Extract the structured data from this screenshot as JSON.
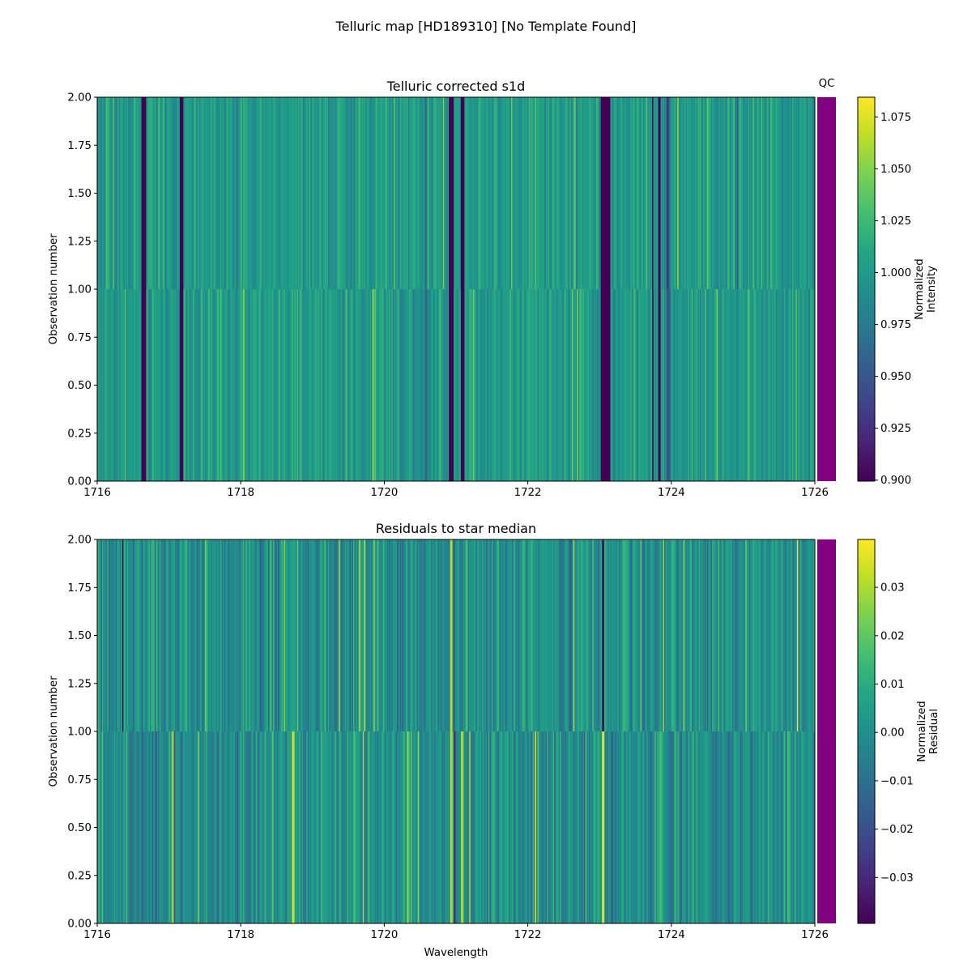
{
  "figure": {
    "suptitle": "Telluric map [HD189310] [No Template Found]"
  },
  "chart_data": [
    {
      "type": "heatmap",
      "title": "Telluric corrected s1d",
      "xlabel": "",
      "ylabel": "Observation number",
      "xlim": [
        1716,
        1726
      ],
      "ylim": [
        0.0,
        2.0
      ],
      "xticks": [
        "1716",
        "1718",
        "1720",
        "1722",
        "1724",
        "1726"
      ],
      "xtick_values": [
        1716,
        1718,
        1720,
        1722,
        1724,
        1726
      ],
      "yticks": [
        "0.00",
        "0.25",
        "0.50",
        "0.75",
        "1.00",
        "1.25",
        "1.50",
        "1.75",
        "2.00"
      ],
      "ytick_values": [
        0,
        0.25,
        0.5,
        0.75,
        1.0,
        1.25,
        1.5,
        1.75,
        2.0
      ],
      "rows": 2,
      "colormap": "viridis",
      "baseline_value": 1.0,
      "noise_amplitude": 0.02,
      "absorption_features": [
        {
          "center": 1716.65,
          "width": 0.06,
          "depth_obs0": 0.2,
          "depth_obs1": 0.2
        },
        {
          "center": 1717.17,
          "width": 0.05,
          "depth_obs0": 0.2,
          "depth_obs1": 0.2
        },
        {
          "center": 1720.93,
          "width": 0.06,
          "depth_obs0": 0.2,
          "depth_obs1": 0.2
        },
        {
          "center": 1721.1,
          "width": 0.05,
          "depth_obs0": 0.2,
          "depth_obs1": 0.2
        },
        {
          "center": 1723.08,
          "width": 0.14,
          "depth_obs0": 0.2,
          "depth_obs1": 0.2
        },
        {
          "center": 1723.74,
          "width": 0.03,
          "depth_obs0": 0.2,
          "depth_obs1": 0.2
        },
        {
          "center": 1723.84,
          "width": 0.03,
          "depth_obs0": 0.2,
          "depth_obs1": 0.2
        },
        {
          "center": 1723.96,
          "width": 0.06,
          "depth_obs0": 0.06,
          "depth_obs1": 0.06
        },
        {
          "center": 1720.58,
          "width": 0.03,
          "depth_obs0": 0.05,
          "depth_obs1": 0.03
        },
        {
          "center": 1724.9,
          "width": 0.05,
          "depth_obs0": 0.03,
          "depth_obs1": 0.02
        }
      ],
      "colorbar": {
        "label": "Normalized\nIntensity",
        "label_lines": [
          "Normalized",
          "Intensity"
        ],
        "vmin": 0.8995,
        "vmax": 1.0845,
        "ticks": [
          "0.900",
          "0.925",
          "0.950",
          "0.975",
          "1.000",
          "1.025",
          "1.050",
          "1.075"
        ],
        "tick_values": [
          0.9,
          0.925,
          0.95,
          0.975,
          1.0,
          1.025,
          1.05,
          1.075
        ]
      },
      "qc": {
        "label": "QC",
        "color": "#800080"
      }
    },
    {
      "type": "heatmap",
      "title": "Residuals to star median",
      "xlabel": "Wavelength",
      "ylabel": "Observation number",
      "xlim": [
        1716,
        1726
      ],
      "ylim": [
        0.0,
        2.0
      ],
      "xticks": [
        "1716",
        "1718",
        "1720",
        "1722",
        "1724",
        "1726"
      ],
      "xtick_values": [
        1716,
        1718,
        1720,
        1722,
        1724,
        1726
      ],
      "yticks": [
        "0.00",
        "0.25",
        "0.50",
        "0.75",
        "1.00",
        "1.25",
        "1.50",
        "1.75",
        "2.00"
      ],
      "ytick_values": [
        0,
        0.25,
        0.5,
        0.75,
        1.0,
        1.25,
        1.5,
        1.75,
        2.0
      ],
      "rows": 2,
      "colormap": "viridis",
      "baseline_value": 0.0,
      "noise_amplitude": 0.012,
      "residual_features": [
        {
          "center": 1720.93,
          "width": 0.03,
          "value_obs0": 0.03,
          "value_obs1": 0.03
        },
        {
          "center": 1720.98,
          "width": 0.02,
          "value_obs0": -0.03,
          "value_obs1": -0.02
        },
        {
          "center": 1723.05,
          "width": 0.025,
          "value_obs0": 0.036,
          "value_obs1": -0.035
        },
        {
          "center": 1716.36,
          "width": 0.01,
          "value_obs0": 0.0,
          "value_obs1": -0.038
        }
      ],
      "colorbar": {
        "label": "Normalized\nResidual",
        "label_lines": [
          "Normalized",
          "Residual"
        ],
        "vmin": -0.0395,
        "vmax": 0.0399,
        "ticks": [
          "−0.03",
          "−0.02",
          "−0.01",
          "0.00",
          "0.01",
          "0.02",
          "0.03"
        ],
        "tick_values": [
          -0.03,
          -0.02,
          -0.01,
          0.0,
          0.01,
          0.02,
          0.03
        ]
      },
      "qc": {
        "label": "",
        "color": "#800080"
      }
    }
  ]
}
